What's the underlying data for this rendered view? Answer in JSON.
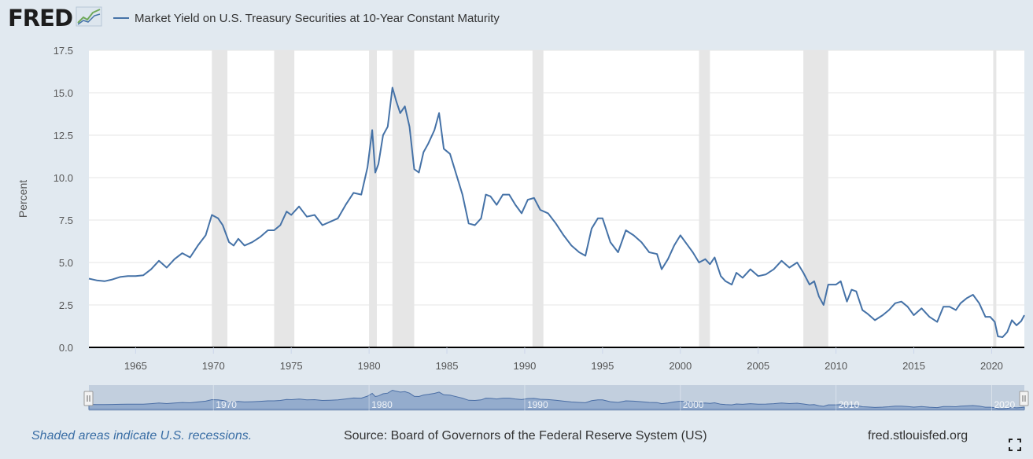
{
  "header": {
    "logo_text": "FRED",
    "logo_icon": "line-graph-icon",
    "series_label": "Market Yield on U.S. Treasury Securities at 10-Year Constant Maturity"
  },
  "footer": {
    "recession_note": "Shaded areas indicate U.S. recessions.",
    "source": "Source: Board of Governors of the Federal Reserve System (US)",
    "site": "fred.stlouisfed.org",
    "fullscreen_icon": "fullscreen-icon"
  },
  "colors": {
    "line": "#4572a7",
    "recession": "#e6e6e6",
    "background": "#e1e9f0",
    "plot_background": "#ffffff",
    "navigator_fill": "#aab9d0",
    "footer_link": "#3a6ea5"
  },
  "chart_data": {
    "type": "line",
    "title": "",
    "xlabel": "",
    "ylabel": "Percent",
    "xlim": [
      1962.0,
      2022.1
    ],
    "ylim": [
      0,
      17.5
    ],
    "x_ticks": [
      1965,
      1970,
      1975,
      1980,
      1985,
      1990,
      1995,
      2000,
      2005,
      2010,
      2015,
      2020
    ],
    "y_ticks": [
      0.0,
      2.5,
      5.0,
      7.5,
      10.0,
      12.5,
      15.0,
      17.5
    ],
    "y_tick_labels": [
      "0.0",
      "2.5",
      "5.0",
      "7.5",
      "10.0",
      "12.5",
      "15.0",
      "17.5"
    ],
    "grid": "horizontal",
    "legend_position": "top-left",
    "recessions": [
      [
        1969.9,
        1970.9
      ],
      [
        1973.9,
        1975.2
      ],
      [
        1980.0,
        1980.5
      ],
      [
        1981.5,
        1982.9
      ],
      [
        1990.5,
        1991.2
      ],
      [
        2001.2,
        2001.9
      ],
      [
        2007.9,
        2009.5
      ],
      [
        2020.1,
        2020.3
      ]
    ],
    "series": [
      {
        "name": "Market Yield on U.S. Treasury Securities at 10-Year Constant Maturity",
        "x": [
          1962.0,
          1962.5,
          1963.0,
          1963.5,
          1964.0,
          1964.5,
          1965.0,
          1965.5,
          1966.0,
          1966.5,
          1967.0,
          1967.5,
          1968.0,
          1968.5,
          1969.0,
          1969.5,
          1969.9,
          1970.3,
          1970.6,
          1971.0,
          1971.3,
          1971.6,
          1972.0,
          1972.5,
          1973.0,
          1973.5,
          1973.9,
          1974.3,
          1974.7,
          1975.0,
          1975.5,
          1976.0,
          1976.5,
          1977.0,
          1977.5,
          1978.0,
          1978.5,
          1979.0,
          1979.5,
          1979.9,
          1980.2,
          1980.4,
          1980.6,
          1980.9,
          1981.2,
          1981.5,
          1981.75,
          1982.0,
          1982.3,
          1982.6,
          1982.9,
          1983.2,
          1983.5,
          1983.8,
          1984.2,
          1984.5,
          1984.8,
          1985.2,
          1985.6,
          1986.0,
          1986.4,
          1986.8,
          1987.2,
          1987.5,
          1987.8,
          1988.2,
          1988.6,
          1989.0,
          1989.4,
          1989.8,
          1990.2,
          1990.6,
          1991.0,
          1991.5,
          1992.0,
          1992.5,
          1993.0,
          1993.5,
          1993.9,
          1994.3,
          1994.7,
          1995.0,
          1995.5,
          1996.0,
          1996.5,
          1997.0,
          1997.5,
          1998.0,
          1998.5,
          1998.8,
          1999.2,
          1999.6,
          2000.0,
          2000.4,
          2000.8,
          2001.2,
          2001.6,
          2001.9,
          2002.2,
          2002.6,
          2002.9,
          2003.3,
          2003.6,
          2004.0,
          2004.5,
          2005.0,
          2005.5,
          2006.0,
          2006.5,
          2007.0,
          2007.5,
          2007.9,
          2008.3,
          2008.6,
          2008.9,
          2009.2,
          2009.5,
          2010.0,
          2010.3,
          2010.7,
          2011.0,
          2011.3,
          2011.7,
          2012.0,
          2012.5,
          2013.0,
          2013.4,
          2013.8,
          2014.2,
          2014.6,
          2015.0,
          2015.5,
          2016.0,
          2016.5,
          2016.9,
          2017.3,
          2017.7,
          2018.0,
          2018.4,
          2018.8,
          2019.2,
          2019.6,
          2019.9,
          2020.2,
          2020.4,
          2020.7,
          2021.0,
          2021.3,
          2021.6,
          2021.9,
          2022.1
        ],
        "values": [
          4.05,
          3.95,
          3.9,
          4.0,
          4.15,
          4.2,
          4.2,
          4.25,
          4.6,
          5.1,
          4.7,
          5.2,
          5.55,
          5.3,
          6.0,
          6.6,
          7.8,
          7.6,
          7.2,
          6.2,
          6.0,
          6.4,
          6.0,
          6.2,
          6.5,
          6.9,
          6.9,
          7.2,
          8.0,
          7.8,
          8.3,
          7.7,
          7.8,
          7.2,
          7.4,
          7.6,
          8.4,
          9.1,
          9.0,
          10.6,
          12.8,
          10.3,
          10.8,
          12.5,
          13.0,
          15.3,
          14.5,
          13.8,
          14.2,
          13.0,
          10.5,
          10.3,
          11.5,
          12.0,
          12.8,
          13.8,
          11.7,
          11.4,
          10.2,
          9.0,
          7.3,
          7.2,
          7.6,
          9.0,
          8.9,
          8.4,
          9.0,
          9.0,
          8.4,
          7.9,
          8.7,
          8.8,
          8.1,
          7.9,
          7.3,
          6.6,
          6.0,
          5.6,
          5.4,
          7.0,
          7.6,
          7.6,
          6.2,
          5.6,
          6.9,
          6.6,
          6.2,
          5.6,
          5.5,
          4.6,
          5.2,
          6.0,
          6.6,
          6.1,
          5.6,
          5.0,
          5.2,
          4.9,
          5.3,
          4.2,
          3.9,
          3.7,
          4.4,
          4.1,
          4.6,
          4.2,
          4.3,
          4.6,
          5.1,
          4.7,
          5.0,
          4.4,
          3.7,
          3.9,
          3.0,
          2.5,
          3.7,
          3.7,
          3.9,
          2.7,
          3.4,
          3.3,
          2.2,
          2.0,
          1.6,
          1.9,
          2.2,
          2.6,
          2.7,
          2.4,
          1.9,
          2.3,
          1.8,
          1.5,
          2.4,
          2.4,
          2.2,
          2.6,
          2.9,
          3.1,
          2.6,
          1.8,
          1.8,
          1.5,
          0.65,
          0.6,
          0.9,
          1.6,
          1.3,
          1.55,
          1.9
        ]
      }
    ]
  },
  "navigator": {
    "tick_labels": [
      "1970",
      "1980",
      "1990",
      "2000",
      "2010",
      "2020"
    ],
    "ticks": [
      1970,
      1980,
      1990,
      2000,
      2010,
      2020
    ],
    "left_handle": "range-handle-left",
    "right_handle": "range-handle-right"
  }
}
